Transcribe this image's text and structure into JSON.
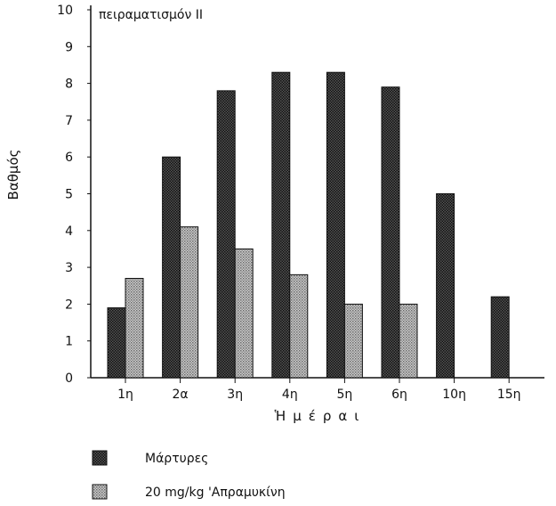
{
  "chart_data": {
    "type": "bar",
    "title": "πειραματισμόν II",
    "ylabel": "Βαθμός",
    "xlabel": "Ἡμέραι",
    "categories": [
      "1η",
      "2α",
      "3η",
      "4η",
      "5η",
      "6η",
      "10η",
      "15η"
    ],
    "ylim": [
      0,
      10
    ],
    "yticks": [
      0,
      1,
      2,
      3,
      4,
      5,
      6,
      7,
      8,
      9,
      10
    ],
    "grid": false,
    "legend_position": "bottom-left",
    "series": [
      {
        "name": "Μάρτυρες",
        "values": [
          1.9,
          6.0,
          7.8,
          8.3,
          8.3,
          7.9,
          5.0,
          2.2
        ],
        "color": "#3a3a3a"
      },
      {
        "name": "20 mg/kg 'Απραμυκίνη",
        "values": [
          2.7,
          4.1,
          3.5,
          2.8,
          2.0,
          2.0,
          null,
          null
        ],
        "color": "#9a9a9a"
      }
    ]
  }
}
